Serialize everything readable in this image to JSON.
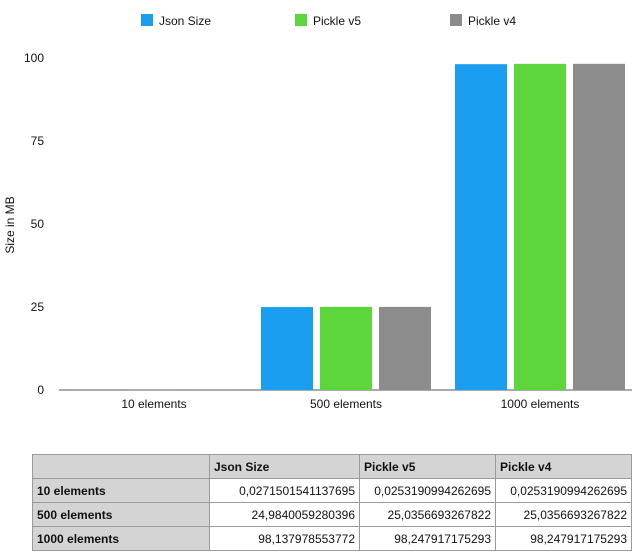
{
  "chart_data": {
    "type": "bar",
    "title": "",
    "xlabel": "",
    "ylabel": "Size in MB",
    "ylim": [
      0,
      100
    ],
    "yticks": [
      "0",
      "25",
      "50",
      "75",
      "100"
    ],
    "categories": [
      "10 elements",
      "500 elements",
      "1000 elements"
    ],
    "series": [
      {
        "name": "Json Size",
        "color": "#1a9ff0",
        "values": [
          0.0271501541137695,
          24.9840059280396,
          98.137978553772
        ]
      },
      {
        "name": "Pickle v5",
        "color": "#5cd63b",
        "values": [
          0.0253190994262695,
          25.0356693267822,
          98.247917175293
        ]
      },
      {
        "name": "Pickle v4",
        "color": "#8c8c8c",
        "values": [
          0.0253190994262695,
          25.0356693267822,
          98.247917175293
        ]
      }
    ],
    "legend_position": "top",
    "grid": false
  },
  "table": {
    "headers": [
      "",
      "Json Size",
      "Pickle v5",
      "Pickle v4"
    ],
    "rows": [
      [
        "10 elements",
        "0,0271501541137695",
        "0,0253190994262695",
        "0,0253190994262695"
      ],
      [
        "500 elements",
        "24,9840059280396",
        "25,0356693267822",
        "25,0356693267822"
      ],
      [
        "1000 elements",
        "98,137978553772",
        "98,247917175293",
        "98,247917175293"
      ]
    ]
  }
}
